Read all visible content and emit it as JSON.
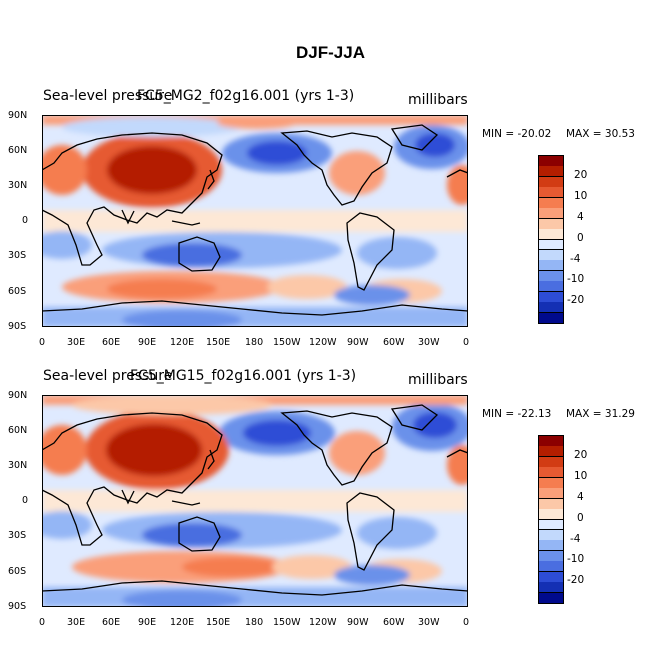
{
  "figure": {
    "title": "DJF-JJA"
  },
  "panels": [
    {
      "left_title": "Sea-level pressure",
      "center_title": "FC5_MG2_f02g16.001 (yrs 1-3)",
      "units": "millibars",
      "min_label": "MIN = -20.02",
      "max_label": "MAX =  30.53"
    },
    {
      "left_title": "Sea-level pressure",
      "center_title": "FC5_MG15_f02g16.001 (yrs 1-3)",
      "units": "millibars",
      "min_label": "MIN = -22.13",
      "max_label": "MAX =  31.29"
    }
  ],
  "axes": {
    "lat_labels": [
      "90N",
      "60N",
      "30N",
      "0",
      "30S",
      "60S",
      "90S"
    ],
    "lon_labels": [
      "0",
      "30E",
      "60E",
      "90E",
      "120E",
      "150E",
      "180",
      "150W",
      "120W",
      "90W",
      "60W",
      "30W",
      "0"
    ]
  },
  "colorbar": {
    "labels": [
      "20",
      "10",
      "4",
      "0",
      "-4",
      "-10",
      "-20"
    ],
    "colors": [
      "#8b0000",
      "#b41e00",
      "#d23c14",
      "#e65a32",
      "#f57d50",
      "#fa9f7a",
      "#fcc8a8",
      "#fde8d6",
      "#dfeaff",
      "#c2d9fc",
      "#94b6f5",
      "#6b91ea",
      "#4a6ee0",
      "#2d4dd6",
      "#1430b4",
      "#000a8c"
    ]
  },
  "map_colors": {
    "deep_red": "#b41e00",
    "red": "#e65a32",
    "orange": "#fa9f7a",
    "peach": "#fde8d6",
    "pale_blue": "#dfeaff",
    "light_blue": "#c2d9fc",
    "blue": "#6b91ea",
    "deep_blue": "#2d4dd6"
  }
}
